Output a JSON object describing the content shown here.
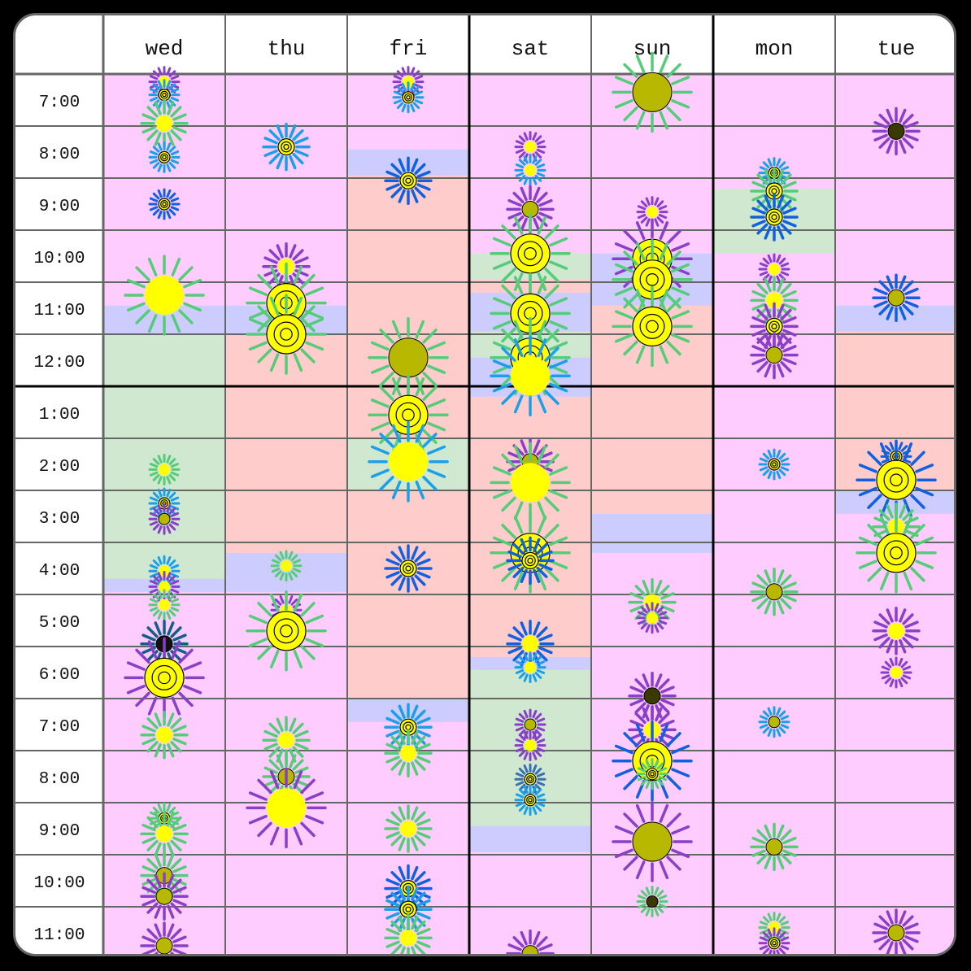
{
  "days": [
    "wed",
    "thu",
    "fri",
    "sat",
    "sun",
    "mon",
    "tue"
  ],
  "times": [
    "7:00",
    "8:00",
    "9:00",
    "10:00",
    "11:00",
    "12:00",
    "1:00",
    "2:00",
    "3:00",
    "4:00",
    "5:00",
    "6:00",
    "7:00",
    "8:00",
    "9:00",
    "10:00",
    "11:00"
  ],
  "colors": {
    "free": "#ffccff",
    "red": "#ffcccc",
    "green": "#d0e8d0",
    "blue": "#ccccff",
    "grid_line": "#666666",
    "divider": "#000000"
  },
  "blocks": [
    {
      "day": 0,
      "start": 4.45,
      "end": 5.0,
      "color": "blue"
    },
    {
      "day": 0,
      "start": 5.0,
      "end": 9.7,
      "color": "green"
    },
    {
      "day": 0,
      "start": 9.7,
      "end": 9.95,
      "color": "blue"
    },
    {
      "day": 1,
      "start": 4.45,
      "end": 5.0,
      "color": "blue"
    },
    {
      "day": 1,
      "start": 5.0,
      "end": 9.2,
      "color": "red"
    },
    {
      "day": 1,
      "start": 9.2,
      "end": 9.95,
      "color": "blue"
    },
    {
      "day": 2,
      "start": 1.45,
      "end": 1.95,
      "color": "blue"
    },
    {
      "day": 2,
      "start": 1.95,
      "end": 7.0,
      "color": "red"
    },
    {
      "day": 2,
      "start": 7.0,
      "end": 8.0,
      "color": "green"
    },
    {
      "day": 2,
      "start": 8.0,
      "end": 12.0,
      "color": "red"
    },
    {
      "day": 2,
      "start": 12.0,
      "end": 12.45,
      "color": "blue"
    },
    {
      "day": 3,
      "start": 3.45,
      "end": 3.95,
      "color": "green"
    },
    {
      "day": 3,
      "start": 3.95,
      "end": 4.2,
      "color": "red"
    },
    {
      "day": 3,
      "start": 4.2,
      "end": 4.95,
      "color": "blue"
    },
    {
      "day": 3,
      "start": 4.95,
      "end": 5.45,
      "color": "green"
    },
    {
      "day": 3,
      "start": 5.45,
      "end": 6.2,
      "color": "blue"
    },
    {
      "day": 3,
      "start": 6.2,
      "end": 11.2,
      "color": "red"
    },
    {
      "day": 3,
      "start": 11.2,
      "end": 11.45,
      "color": "blue"
    },
    {
      "day": 3,
      "start": 11.45,
      "end": 14.45,
      "color": "green"
    },
    {
      "day": 3,
      "start": 14.45,
      "end": 14.95,
      "color": "blue"
    },
    {
      "day": 4,
      "start": 3.45,
      "end": 4.45,
      "color": "blue"
    },
    {
      "day": 4,
      "start": 4.45,
      "end": 6.0,
      "color": "red"
    },
    {
      "day": 4,
      "start": 6.0,
      "end": 8.45,
      "color": "red"
    },
    {
      "day": 4,
      "start": 8.45,
      "end": 9.2,
      "color": "blue"
    },
    {
      "day": 5,
      "start": 2.2,
      "end": 3.45,
      "color": "green"
    },
    {
      "day": 6,
      "start": 4.45,
      "end": 4.95,
      "color": "blue"
    },
    {
      "day": 6,
      "start": 4.95,
      "end": 6.0,
      "color": "red"
    },
    {
      "day": 6,
      "start": 6.0,
      "end": 8.0,
      "color": "red"
    },
    {
      "day": 6,
      "start": 8.0,
      "end": 8.45,
      "color": "blue"
    }
  ],
  "flowers": [
    {
      "day": 0,
      "t": 0.15,
      "size": "s",
      "petals": "purple",
      "center": "yellow"
    },
    {
      "day": 0,
      "t": 0.4,
      "size": "s",
      "petals": "sky",
      "center": "ring"
    },
    {
      "day": 0,
      "t": 0.95,
      "size": "m",
      "petals": "green",
      "center": "yellow"
    },
    {
      "day": 0,
      "t": 1.6,
      "size": "s",
      "petals": "sky",
      "center": "ring"
    },
    {
      "day": 0,
      "t": 2.5,
      "size": "s",
      "petals": "blue",
      "center": "ring"
    },
    {
      "day": 0,
      "t": 4.25,
      "size": "l",
      "petals": "green",
      "center": "yellow"
    },
    {
      "day": 0,
      "t": 7.6,
      "size": "s",
      "petals": "green",
      "center": "yellow"
    },
    {
      "day": 0,
      "t": 8.25,
      "size": "s",
      "petals": "sky",
      "center": "ring"
    },
    {
      "day": 0,
      "t": 8.55,
      "size": "s",
      "petals": "purple",
      "center": "olive"
    },
    {
      "day": 0,
      "t": 9.55,
      "size": "s",
      "petals": "sky",
      "center": "yellow"
    },
    {
      "day": 0,
      "t": 9.85,
      "size": "s",
      "petals": "purple",
      "center": "yellow"
    },
    {
      "day": 0,
      "t": 10.2,
      "size": "s",
      "petals": "green",
      "center": "yellow"
    },
    {
      "day": 0,
      "t": 10.95,
      "size": "m",
      "petals": "teal",
      "center": "black"
    },
    {
      "day": 0,
      "t": 11.6,
      "size": "l",
      "petals": "purple",
      "center": "ring"
    },
    {
      "day": 0,
      "t": 12.7,
      "size": "m",
      "petals": "green",
      "center": "yellow"
    },
    {
      "day": 0,
      "t": 14.3,
      "size": "s",
      "petals": "green",
      "center": "ring"
    },
    {
      "day": 0,
      "t": 14.6,
      "size": "m",
      "petals": "green",
      "center": "yellow"
    },
    {
      "day": 0,
      "t": 15.4,
      "size": "m",
      "petals": "green",
      "center": "olive"
    },
    {
      "day": 0,
      "t": 15.8,
      "size": "m",
      "petals": "purple",
      "center": "olive"
    },
    {
      "day": 0,
      "t": 16.75,
      "size": "m",
      "petals": "purple",
      "center": "olive"
    },
    {
      "day": 1,
      "t": 1.4,
      "size": "m",
      "petals": "sky",
      "center": "ring"
    },
    {
      "day": 1,
      "t": 3.7,
      "size": "m",
      "petals": "purple",
      "center": "yellow"
    },
    {
      "day": 1,
      "t": 4.4,
      "size": "l",
      "petals": "green",
      "center": "ring"
    },
    {
      "day": 1,
      "t": 5.0,
      "size": "l",
      "petals": "green",
      "center": "ring"
    },
    {
      "day": 1,
      "t": 9.45,
      "size": "s",
      "petals": "green",
      "center": "yellow"
    },
    {
      "day": 1,
      "t": 10.3,
      "size": "s",
      "petals": "purple",
      "center": "yellow"
    },
    {
      "day": 1,
      "t": 10.7,
      "size": "l",
      "petals": "green",
      "center": "ring"
    },
    {
      "day": 1,
      "t": 12.8,
      "size": "m",
      "petals": "green",
      "center": "yellow"
    },
    {
      "day": 1,
      "t": 13.5,
      "size": "m",
      "petals": "green",
      "center": "olive"
    },
    {
      "day": 1,
      "t": 14.1,
      "size": "l",
      "petals": "purple",
      "center": "yellow"
    },
    {
      "day": 2,
      "t": 0.15,
      "size": "s",
      "petals": "purple",
      "center": "yellow"
    },
    {
      "day": 2,
      "t": 0.45,
      "size": "s",
      "petals": "sky",
      "center": "ring"
    },
    {
      "day": 2,
      "t": 2.05,
      "size": "m",
      "petals": "blue",
      "center": "ring"
    },
    {
      "day": 2,
      "t": 5.45,
      "size": "l",
      "petals": "green",
      "center": "olive"
    },
    {
      "day": 2,
      "t": 6.55,
      "size": "l",
      "petals": "green",
      "center": "ring"
    },
    {
      "day": 2,
      "t": 7.45,
      "size": "l",
      "petals": "sky",
      "center": "yellow"
    },
    {
      "day": 2,
      "t": 9.5,
      "size": "m",
      "petals": "blue",
      "center": "ring"
    },
    {
      "day": 2,
      "t": 12.55,
      "size": "m",
      "petals": "sky",
      "center": "ring"
    },
    {
      "day": 2,
      "t": 13.05,
      "size": "m",
      "petals": "green",
      "center": "yellow"
    },
    {
      "day": 2,
      "t": 14.5,
      "size": "m",
      "petals": "green",
      "center": "yellow"
    },
    {
      "day": 2,
      "t": 15.65,
      "size": "m",
      "petals": "blue",
      "center": "ring"
    },
    {
      "day": 2,
      "t": 16.05,
      "size": "m",
      "petals": "sky",
      "center": "ring"
    },
    {
      "day": 2,
      "t": 16.6,
      "size": "m",
      "petals": "green",
      "center": "yellow"
    },
    {
      "day": 3,
      "t": 1.4,
      "size": "s",
      "petals": "purple",
      "center": "yellow"
    },
    {
      "day": 3,
      "t": 1.85,
      "size": "s",
      "petals": "sky",
      "center": "yellow"
    },
    {
      "day": 3,
      "t": 2.6,
      "size": "m",
      "petals": "purple",
      "center": "olive"
    },
    {
      "day": 3,
      "t": 3.45,
      "size": "l",
      "petals": "green",
      "center": "ring"
    },
    {
      "day": 3,
      "t": 4.6,
      "size": "l",
      "petals": "green",
      "center": "ring"
    },
    {
      "day": 3,
      "t": 5.45,
      "size": "l",
      "petals": "green",
      "center": "ring"
    },
    {
      "day": 3,
      "t": 5.8,
      "size": "l",
      "petals": "sky",
      "center": "yellow"
    },
    {
      "day": 3,
      "t": 7.45,
      "size": "m",
      "petals": "purple",
      "center": "olive"
    },
    {
      "day": 3,
      "t": 7.85,
      "size": "l",
      "petals": "green",
      "center": "yellow"
    },
    {
      "day": 3,
      "t": 9.2,
      "size": "l",
      "petals": "green",
      "center": "ring"
    },
    {
      "day": 3,
      "t": 9.35,
      "size": "m",
      "petals": "blue",
      "center": "ring"
    },
    {
      "day": 3,
      "t": 10.95,
      "size": "m",
      "petals": "blue",
      "center": "yellow"
    },
    {
      "day": 3,
      "t": 11.4,
      "size": "s",
      "petals": "sky",
      "center": "yellow"
    },
    {
      "day": 3,
      "t": 12.5,
      "size": "s",
      "petals": "purple",
      "center": "olive"
    },
    {
      "day": 3,
      "t": 12.9,
      "size": "s",
      "petals": "purple",
      "center": "yellow"
    },
    {
      "day": 3,
      "t": 13.55,
      "size": "s",
      "petals": "steel",
      "center": "ring"
    },
    {
      "day": 3,
      "t": 13.95,
      "size": "s",
      "petals": "sky",
      "center": "ring"
    },
    {
      "day": 3,
      "t": 16.9,
      "size": "m",
      "petals": "purple",
      "center": "olive"
    },
    {
      "day": 4,
      "t": 0.35,
      "size": "l",
      "petals": "green",
      "center": "olive"
    },
    {
      "day": 4,
      "t": 2.65,
      "size": "s",
      "petals": "purple",
      "center": "yellow"
    },
    {
      "day": 4,
      "t": 3.55,
      "size": "l",
      "petals": "purple",
      "center": "ring"
    },
    {
      "day": 4,
      "t": 3.95,
      "size": "l",
      "petals": "green",
      "center": "ring"
    },
    {
      "day": 4,
      "t": 4.85,
      "size": "l",
      "petals": "green",
      "center": "ring"
    },
    {
      "day": 4,
      "t": 10.15,
      "size": "m",
      "petals": "green",
      "center": "yellow"
    },
    {
      "day": 4,
      "t": 10.45,
      "size": "s",
      "petals": "purple",
      "center": "yellow"
    },
    {
      "day": 4,
      "t": 11.95,
      "size": "m",
      "petals": "purple",
      "center": "dark"
    },
    {
      "day": 4,
      "t": 12.6,
      "size": "m",
      "petals": "purple",
      "center": "yellow"
    },
    {
      "day": 4,
      "t": 13.2,
      "size": "l",
      "petals": "blue",
      "center": "ring"
    },
    {
      "day": 4,
      "t": 13.45,
      "size": "s",
      "petals": "green",
      "center": "ring"
    },
    {
      "day": 4,
      "t": 14.75,
      "size": "l",
      "petals": "purple",
      "center": "olive"
    },
    {
      "day": 4,
      "t": 15.9,
      "size": "s",
      "petals": "green",
      "center": "dark"
    },
    {
      "day": 5,
      "t": 1.9,
      "size": "s",
      "petals": "sky",
      "center": "ring"
    },
    {
      "day": 5,
      "t": 2.25,
      "size": "m",
      "petals": "green",
      "center": "ring"
    },
    {
      "day": 5,
      "t": 2.75,
      "size": "m",
      "petals": "blue",
      "center": "ring"
    },
    {
      "day": 5,
      "t": 3.75,
      "size": "s",
      "petals": "purple",
      "center": "yellow"
    },
    {
      "day": 5,
      "t": 4.35,
      "size": "m",
      "petals": "green",
      "center": "yellow"
    },
    {
      "day": 5,
      "t": 4.85,
      "size": "m",
      "petals": "purple",
      "center": "ring"
    },
    {
      "day": 5,
      "t": 5.4,
      "size": "m",
      "petals": "purple",
      "center": "olive"
    },
    {
      "day": 5,
      "t": 7.5,
      "size": "s",
      "petals": "sky",
      "center": "ring"
    },
    {
      "day": 5,
      "t": 9.95,
      "size": "m",
      "petals": "green",
      "center": "olive"
    },
    {
      "day": 5,
      "t": 12.45,
      "size": "s",
      "petals": "sky",
      "center": "olive"
    },
    {
      "day": 5,
      "t": 14.85,
      "size": "m",
      "petals": "green",
      "center": "olive"
    },
    {
      "day": 5,
      "t": 16.4,
      "size": "s",
      "petals": "green",
      "center": "yellow"
    },
    {
      "day": 5,
      "t": 16.7,
      "size": "s",
      "petals": "purple",
      "center": "ring"
    },
    {
      "day": 6,
      "t": 1.1,
      "size": "m",
      "petals": "purple",
      "center": "dark"
    },
    {
      "day": 6,
      "t": 4.3,
      "size": "m",
      "petals": "blue",
      "center": "olive"
    },
    {
      "day": 6,
      "t": 7.35,
      "size": "s",
      "petals": "blue",
      "center": "ring"
    },
    {
      "day": 6,
      "t": 7.8,
      "size": "l",
      "petals": "blue",
      "center": "ring"
    },
    {
      "day": 6,
      "t": 8.7,
      "size": "m",
      "petals": "green",
      "center": "yellow"
    },
    {
      "day": 6,
      "t": 9.2,
      "size": "l",
      "petals": "green",
      "center": "ring"
    },
    {
      "day": 6,
      "t": 10.7,
      "size": "m",
      "petals": "purple",
      "center": "yellow"
    },
    {
      "day": 6,
      "t": 11.5,
      "size": "s",
      "petals": "purple",
      "center": "yellow"
    },
    {
      "day": 6,
      "t": 16.5,
      "size": "m",
      "petals": "purple",
      "center": "olive"
    }
  ]
}
